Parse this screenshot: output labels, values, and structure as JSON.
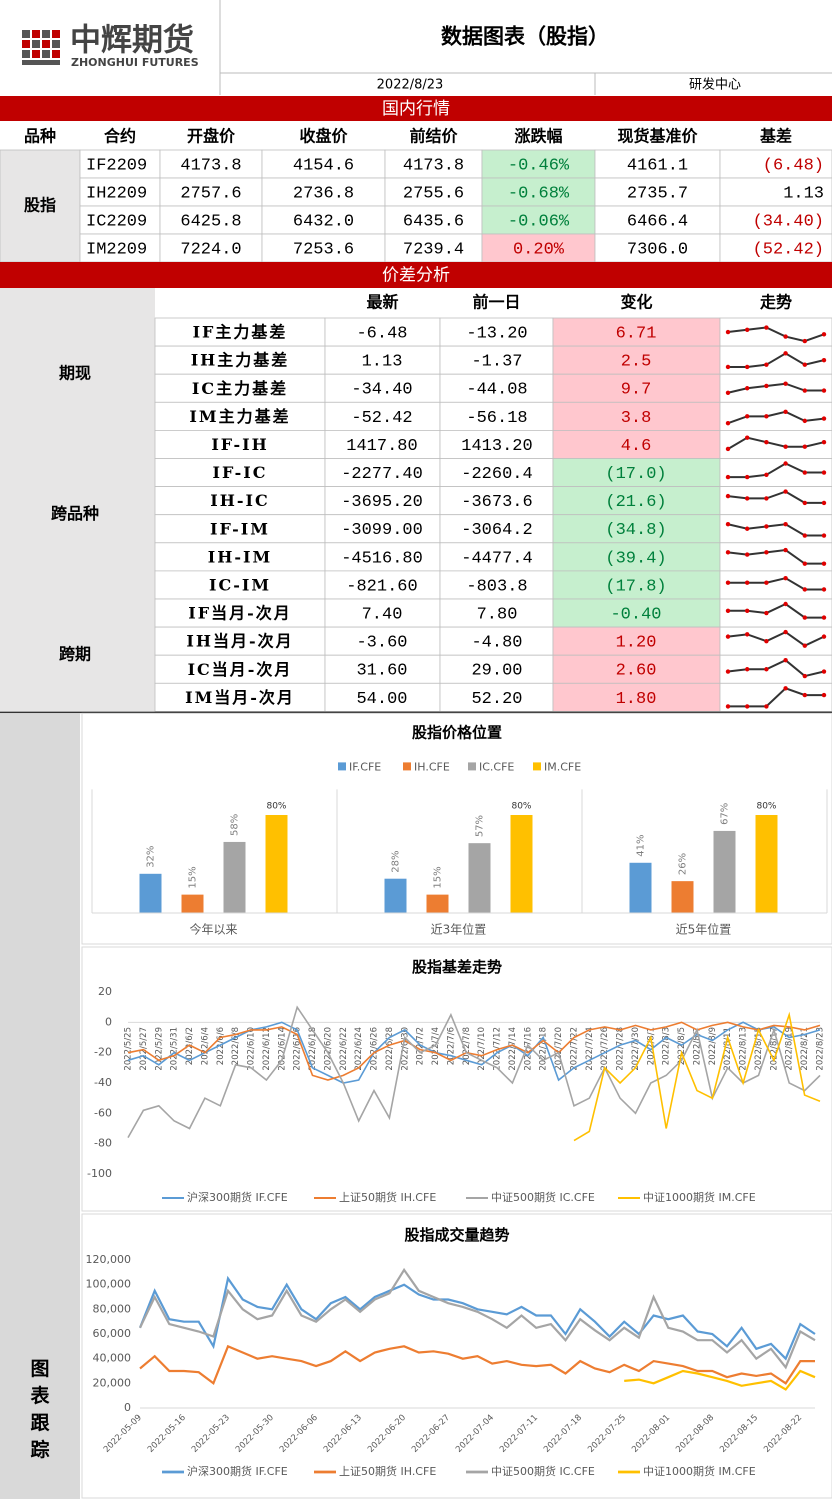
{
  "header": {
    "logo_cn": "中辉期货",
    "logo_en": "ZHONGHUI FUTURES",
    "title": "数据图表（股指）",
    "date": "2022/8/23",
    "dept": "研发中心"
  },
  "tones": {
    "up": {
      "fill": "#ffc7ce",
      "text": "#c00000"
    },
    "down": {
      "fill": "#c6efce",
      "text": "#00803c"
    }
  },
  "market": {
    "title": "国内行情",
    "columns": [
      "品种",
      "合约",
      "开盘价",
      "收盘价",
      "前结价",
      "涨跌幅",
      "现货基准价",
      "基差"
    ],
    "group": "股指",
    "rows": [
      {
        "cells": [
          "IF2209",
          "4173.8",
          "4154.6",
          "4173.8",
          "-0.46%",
          "4161.1",
          "(6.48)"
        ],
        "tone": "down",
        "basis_color": "#c00000"
      },
      {
        "cells": [
          "IH2209",
          "2757.6",
          "2736.8",
          "2755.6",
          "-0.68%",
          "2735.7",
          "1.13"
        ],
        "tone": "down",
        "basis_color": "#000000"
      },
      {
        "cells": [
          "IC2209",
          "6425.8",
          "6432.0",
          "6435.6",
          "-0.06%",
          "6466.4",
          "(34.40)"
        ],
        "tone": "down",
        "basis_color": "#c00000"
      },
      {
        "cells": [
          "IM2209",
          "7224.0",
          "7253.6",
          "7239.4",
          "0.20%",
          "7306.0",
          "(52.42)"
        ],
        "tone": "up",
        "basis_color": "#c00000"
      }
    ]
  },
  "spread": {
    "title": "价差分析",
    "columns": [
      "最新",
      "前一日",
      "变化",
      "走势"
    ],
    "groups": [
      {
        "name": "期现",
        "rows": [
          {
            "label": "IF主力基差",
            "latest": "-6.48",
            "prev": "-13.20",
            "change": "6.71",
            "tone": "up",
            "trend": [
              5,
              6,
              7,
              3,
              1,
              4
            ]
          },
          {
            "label": "IH主力基差",
            "latest": "1.13",
            "prev": "-1.37",
            "change": "2.5",
            "tone": "up",
            "trend": [
              2,
              2,
              3,
              8,
              3,
              5
            ]
          },
          {
            "label": "IC主力基差",
            "latest": "-34.40",
            "prev": "-44.08",
            "change": "9.7",
            "tone": "up",
            "trend": [
              3,
              5,
              6,
              7,
              4,
              4
            ]
          },
          {
            "label": "IM主力基差",
            "latest": "-52.42",
            "prev": "-56.18",
            "change": "3.8",
            "tone": "up",
            "trend": [
              2,
              5,
              5,
              7,
              3,
              4
            ]
          }
        ]
      },
      {
        "name": "跨品种",
        "rows": [
          {
            "label": "IF-IH",
            "latest": "1417.80",
            "prev": "1413.20",
            "change": "4.6",
            "tone": "up",
            "trend": [
              3,
              8,
              6,
              4,
              4,
              6
            ]
          },
          {
            "label": "IF-IC",
            "latest": "-2277.40",
            "prev": "-2260.4",
            "change": "(17.0)",
            "tone": "down",
            "trend": [
              3,
              3,
              4,
              9,
              5,
              5
            ]
          },
          {
            "label": "IH-IC",
            "latest": "-3695.20",
            "prev": "-3673.6",
            "change": "(21.6)",
            "tone": "down",
            "trend": [
              7,
              6,
              6,
              9,
              4,
              4
            ]
          },
          {
            "label": "IF-IM",
            "latest": "-3099.00",
            "prev": "-3064.2",
            "change": "(34.8)",
            "tone": "down",
            "trend": [
              7,
              5,
              6,
              7,
              2,
              2
            ]
          },
          {
            "label": "IH-IM",
            "latest": "-4516.80",
            "prev": "-4477.4",
            "change": "(39.4)",
            "tone": "down",
            "trend": [
              7,
              6,
              7,
              8,
              2,
              2
            ]
          },
          {
            "label": "IC-IM",
            "latest": "-821.60",
            "prev": "-803.8",
            "change": "(17.8)",
            "tone": "down",
            "trend": [
              6,
              6,
              6,
              8,
              3,
              3
            ]
          }
        ]
      },
      {
        "name": "跨期",
        "rows": [
          {
            "label": "IF当月-次月",
            "latest": "7.40",
            "prev": "7.80",
            "change": "-0.40",
            "tone": "down",
            "trend": [
              6,
              6,
              5,
              9,
              3,
              3
            ]
          },
          {
            "label": "IH当月-次月",
            "latest": "-3.60",
            "prev": "-4.80",
            "change": "1.20",
            "tone": "up",
            "trend": [
              7,
              8,
              5,
              9,
              3,
              7
            ]
          },
          {
            "label": "IC当月-次月",
            "latest": "31.60",
            "prev": "29.00",
            "change": "2.60",
            "tone": "up",
            "trend": [
              4,
              5,
              5,
              9,
              2,
              4
            ]
          },
          {
            "label": "IM当月-次月",
            "latest": "54.00",
            "prev": "52.20",
            "change": "1.80",
            "tone": "up",
            "trend": [
              1,
              1,
              1,
              9,
              6,
              6
            ]
          }
        ]
      }
    ]
  },
  "sidebar": "图表跟踪",
  "chart_data": [
    {
      "type": "bar",
      "title": "股指价格位置",
      "categories": [
        "今年以来",
        "近3年位置",
        "近5年位置"
      ],
      "series": [
        {
          "name": "IF.CFE",
          "color": "#5b9bd5",
          "values": [
            32,
            28,
            41
          ],
          "value_labels": [
            "32%",
            "28%",
            "41%"
          ]
        },
        {
          "name": "IH.CFE",
          "color": "#ed7d31",
          "values": [
            15,
            15,
            26
          ],
          "value_labels": [
            "15%",
            "15%",
            "26%"
          ]
        },
        {
          "name": "IC.CFE",
          "color": "#a5a5a5",
          "values": [
            58,
            57,
            67
          ],
          "value_labels": [
            "58%",
            "57%",
            "67%"
          ]
        },
        {
          "name": "IM.CFE",
          "color": "#ffc000",
          "values": [
            80,
            80,
            80
          ],
          "value_labels": [
            "80%",
            "80%",
            "80%"
          ]
        }
      ]
    },
    {
      "type": "line",
      "title": "股指基差走势",
      "categories": [
        "2022/5/25",
        "2022/5/27",
        "2022/5/29",
        "2022/5/31",
        "2022/6/2",
        "2022/6/4",
        "2022/6/6",
        "2022/6/8",
        "2022/6/10",
        "2022/6/12",
        "2022/6/14",
        "2022/6/16",
        "2022/6/18",
        "2022/6/20",
        "2022/6/22",
        "2022/6/24",
        "2022/6/26",
        "2022/6/28",
        "2022/6/30",
        "2022/7/2",
        "2022/7/4",
        "2022/7/6",
        "2022/7/8",
        "2022/7/10",
        "2022/7/12",
        "2022/7/14",
        "2022/7/16",
        "2022/7/18",
        "2022/7/20",
        "2022/7/22",
        "2022/7/24",
        "2022/7/26",
        "2022/7/28",
        "2022/7/30",
        "2022/8/1",
        "2022/8/3",
        "2022/8/5",
        "2022/8/7",
        "2022/8/9",
        "2022/8/11",
        "2022/8/13",
        "2022/8/15",
        "2022/8/17",
        "2022/8/19",
        "2022/8/21",
        "2022/8/23"
      ],
      "ylim": [
        -100,
        20
      ],
      "yticks": [
        -100,
        -80,
        -60,
        -40,
        -20,
        0,
        20
      ],
      "series": [
        {
          "name": "沪深300期货 IF.CFE",
          "color": "#5b9bd5",
          "values": [
            -25,
            -22,
            -28,
            -20,
            -25,
            -20,
            -15,
            -10,
            -5,
            -3,
            0,
            -5,
            -30,
            -35,
            -40,
            -38,
            -20,
            -10,
            -5,
            -15,
            -20,
            -22,
            -25,
            -28,
            -20,
            -15,
            -22,
            -10,
            -38,
            -30,
            -25,
            -20,
            -15,
            -12,
            -18,
            -10,
            -15,
            -8,
            -12,
            -5,
            0,
            -5,
            -3,
            -10,
            -8,
            -5
          ]
        },
        {
          "name": "上证50期货 IH.CFE",
          "color": "#ed7d31",
          "values": [
            -20,
            -18,
            -25,
            -22,
            -15,
            -20,
            -10,
            -8,
            -5,
            -5,
            -3,
            -8,
            -35,
            -38,
            -35,
            -30,
            -20,
            -15,
            -12,
            -18,
            -20,
            -25,
            -20,
            -22,
            -18,
            -15,
            -20,
            -12,
            -20,
            -10,
            -5,
            -3,
            -5,
            -2,
            -5,
            -3,
            0,
            -5,
            -2,
            0,
            -3,
            -5,
            -2,
            -3,
            -5,
            -2
          ]
        },
        {
          "name": "中证500期货 IC.CFE",
          "color": "#a5a5a5",
          "values": [
            -76,
            -58,
            -55,
            -65,
            -70,
            -50,
            -55,
            -28,
            -30,
            -38,
            -25,
            10,
            -5,
            -20,
            -40,
            -65,
            -45,
            -63,
            -10,
            -20,
            -15,
            5,
            -20,
            -25,
            -30,
            -40,
            -15,
            -25,
            -20,
            -55,
            -50,
            -30,
            -50,
            -60,
            -40,
            -35,
            -25,
            -5,
            -50,
            -30,
            -40,
            -35,
            -5,
            -40,
            -45,
            -35
          ]
        },
        {
          "name": "中证1000期货 IM.CFE",
          "color": "#ffc000",
          "values": [
            null,
            null,
            null,
            null,
            null,
            null,
            null,
            null,
            null,
            null,
            null,
            null,
            null,
            null,
            null,
            null,
            null,
            null,
            null,
            null,
            null,
            null,
            null,
            null,
            null,
            null,
            null,
            null,
            null,
            -78,
            -72,
            -30,
            -40,
            -30,
            -10,
            -70,
            -20,
            -45,
            -50,
            -10,
            -40,
            -5,
            -25,
            5,
            -48,
            -52
          ]
        }
      ]
    },
    {
      "type": "line",
      "title": "股指成交量趋势",
      "categories": [
        "2022-05-09",
        null,
        null,
        "2022-05-16",
        null,
        null,
        "2022-05-23",
        null,
        null,
        "2022-05-30",
        null,
        null,
        "2022-06-06",
        null,
        null,
        "2022-06-13",
        null,
        null,
        "2022-06-20",
        null,
        null,
        "2022-06-27",
        null,
        null,
        "2022-07-04",
        null,
        null,
        "2022-07-11",
        null,
        null,
        "2022-07-18",
        null,
        null,
        "2022-07-25",
        null,
        null,
        "2022-08-01",
        null,
        null,
        "2022-08-08",
        null,
        null,
        "2022-08-15",
        null,
        null,
        "2022-08-22",
        null
      ],
      "ylim": [
        0,
        120000
      ],
      "yticks": [
        0,
        {
          "value": 20000,
          "label": "20,000"
        },
        {
          "value": 40000,
          "label": "40,000"
        },
        {
          "value": 60000,
          "label": "60,000"
        },
        {
          "value": 80000,
          "label": "80,000"
        },
        {
          "value": 100000,
          "label": "100,000"
        },
        {
          "value": 120000,
          "label": "120,000"
        }
      ],
      "series": [
        {
          "name": "沪深300期货 IF.CFE",
          "color": "#5b9bd5",
          "values": [
            65000,
            95000,
            72000,
            70000,
            70000,
            50000,
            105000,
            88000,
            82000,
            80000,
            100000,
            80000,
            72000,
            85000,
            90000,
            80000,
            90000,
            95000,
            100000,
            92000,
            88000,
            88000,
            85000,
            80000,
            78000,
            76000,
            82000,
            75000,
            75000,
            60000,
            80000,
            70000,
            58000,
            70000,
            60000,
            75000,
            72000,
            75000,
            62000,
            60000,
            50000,
            65000,
            48000,
            52000,
            40000,
            68000,
            60000
          ]
        },
        {
          "name": "上证50期货 IH.CFE",
          "color": "#ed7d31",
          "values": [
            32000,
            42000,
            30000,
            30000,
            29000,
            20000,
            50000,
            45000,
            40000,
            42000,
            40000,
            38000,
            34000,
            38000,
            46000,
            38000,
            45000,
            48000,
            50000,
            45000,
            46000,
            44000,
            40000,
            42000,
            36000,
            38000,
            35000,
            34000,
            35000,
            28000,
            38000,
            32000,
            29000,
            35000,
            30000,
            38000,
            36000,
            34000,
            30000,
            30000,
            25000,
            28000,
            26000,
            28000,
            20000,
            38000,
            38000
          ]
        },
        {
          "name": "中证500期货 IC.CFE",
          "color": "#a5a5a5",
          "values": [
            65000,
            90000,
            68000,
            65000,
            62000,
            58000,
            95000,
            80000,
            72000,
            75000,
            95000,
            75000,
            70000,
            80000,
            88000,
            78000,
            88000,
            93000,
            112000,
            95000,
            90000,
            85000,
            82000,
            78000,
            72000,
            65000,
            75000,
            65000,
            68000,
            55000,
            72000,
            63000,
            55000,
            65000,
            57000,
            90000,
            65000,
            62000,
            55000,
            55000,
            45000,
            55000,
            40000,
            48000,
            33000,
            62000,
            55000
          ]
        },
        {
          "name": "中证1000期货 IM.CFE",
          "color": "#ffc000",
          "values": [
            null,
            null,
            null,
            null,
            null,
            null,
            null,
            null,
            null,
            null,
            null,
            null,
            null,
            null,
            null,
            null,
            null,
            null,
            null,
            null,
            null,
            null,
            null,
            null,
            null,
            null,
            null,
            null,
            null,
            null,
            null,
            null,
            null,
            22000,
            23000,
            20000,
            25000,
            30000,
            28000,
            25000,
            22000,
            18000,
            20000,
            22000,
            15000,
            30000,
            25000
          ]
        }
      ]
    }
  ]
}
